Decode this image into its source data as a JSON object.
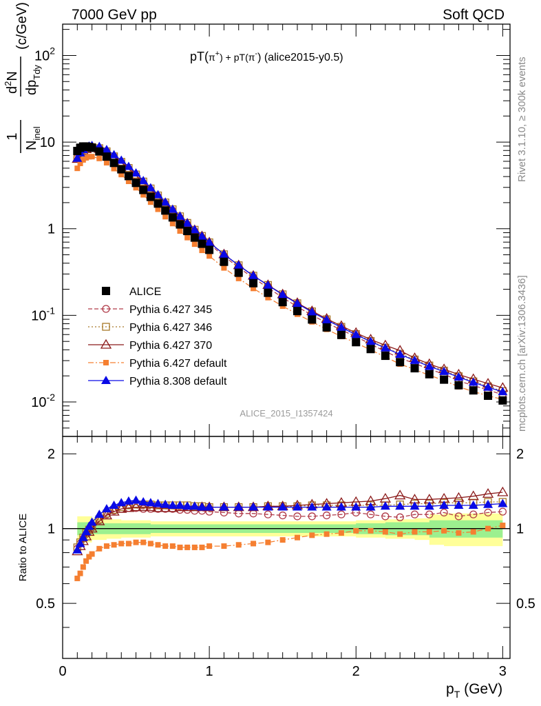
{
  "header": {
    "left": "7000 GeV pp",
    "right": "Soft QCD"
  },
  "chart_data": {
    "type": "scatter",
    "title_parts": {
      "a": "pT(",
      "pip": "π",
      "pip_sup": "+",
      "b": ") + pT(",
      "pim": "π",
      "pim_sup": "-",
      "c": ") (alice2015-y0.5)"
    },
    "ylabel_parts": {
      "one": "1",
      "N": "N",
      "N_sub": "inel",
      "d2N": "d",
      "d2N_sup": "2",
      "d2N_tail": "N",
      "dp": "dp",
      "dp_sub": "Tdy",
      "unit": "(c/GeV)"
    },
    "xlabel_parts": {
      "p": "p",
      "p_sub": "T",
      "unit": " (GeV)"
    },
    "ratio_ylabel": "Ratio to ALICE",
    "analysis_label": "ALICE_2015_I1357424",
    "side_text": {
      "top": "Rivet 3.1.10, ≥ 300k events",
      "bottom": "mcplots.cern.ch [arXiv:1306.3436]"
    },
    "main_yscale": "log",
    "main_ylim": [
      0.004,
      230
    ],
    "main_yticks": [
      {
        "base": "10",
        "exp": "-2"
      },
      {
        "base": "10",
        "exp": "-1"
      },
      {
        "base": "1",
        "exp": ""
      },
      {
        "base": "10",
        "exp": ""
      },
      {
        "base": "10",
        "exp": "2"
      }
    ],
    "ratio_ylim": [
      0.3,
      2.35
    ],
    "ratio_yticks": [
      "0.5",
      "1",
      "2"
    ],
    "xlim": [
      0,
      3.05
    ],
    "xticks": [
      "0",
      "1",
      "2",
      "3"
    ],
    "legend": [
      {
        "name": "ALICE",
        "color": "#000000",
        "marker": "square-filled",
        "line": "none"
      },
      {
        "name": "Pythia 6.427 345",
        "color": "#b03a48",
        "marker": "circle-open",
        "line": "dashed"
      },
      {
        "name": "Pythia 6.427 346",
        "color": "#a87828",
        "marker": "square-open",
        "line": "dotted"
      },
      {
        "name": "Pythia 6.427 370",
        "color": "#8b1a1a",
        "marker": "triangle-open",
        "line": "solid"
      },
      {
        "name": "Pythia 6.427 default",
        "color": "#f57f31",
        "marker": "square-filled-small",
        "line": "dashdot"
      },
      {
        "name": "Pythia 8.308 default",
        "color": "#0a0ae6",
        "marker": "triangle-filled",
        "line": "solid"
      }
    ],
    "x": [
      0.1,
      0.12,
      0.14,
      0.16,
      0.18,
      0.2,
      0.25,
      0.3,
      0.35,
      0.4,
      0.45,
      0.5,
      0.55,
      0.6,
      0.65,
      0.7,
      0.75,
      0.8,
      0.85,
      0.9,
      0.95,
      1.0,
      1.1,
      1.2,
      1.3,
      1.4,
      1.5,
      1.6,
      1.7,
      1.8,
      1.9,
      2.0,
      2.1,
      2.2,
      2.3,
      2.4,
      2.5,
      2.6,
      2.7,
      2.8,
      2.9,
      3.0
    ],
    "data": [
      7.9,
      8.6,
      8.9,
      8.9,
      8.8,
      8.6,
      7.8,
      6.8,
      5.75,
      4.85,
      4.05,
      3.38,
      2.8,
      2.33,
      1.95,
      1.62,
      1.35,
      1.12,
      0.94,
      0.79,
      0.67,
      0.57,
      0.415,
      0.31,
      0.235,
      0.182,
      0.142,
      0.112,
      0.0895,
      0.0725,
      0.0594,
      0.049,
      0.0408,
      0.0341,
      0.0288,
      0.0245,
      0.0209,
      0.0181,
      0.0156,
      0.0136,
      0.0118,
      0.0104
    ],
    "band_x": [
      0.1,
      0.2,
      0.3,
      0.4,
      0.5,
      0.6,
      0.7,
      0.8,
      0.9,
      1.0,
      1.2,
      1.4,
      1.6,
      1.8,
      2.0,
      2.2,
      2.4,
      2.5,
      2.6,
      2.8,
      3.0
    ],
    "band_outer": [
      0.12,
      0.1,
      0.09,
      0.08,
      0.08,
      0.07,
      0.07,
      0.07,
      0.07,
      0.07,
      0.07,
      0.07,
      0.07,
      0.07,
      0.08,
      0.09,
      0.1,
      0.14,
      0.15,
      0.15,
      0.15
    ],
    "band_inner": [
      0.06,
      0.05,
      0.05,
      0.05,
      0.05,
      0.04,
      0.04,
      0.04,
      0.04,
      0.04,
      0.04,
      0.04,
      0.04,
      0.04,
      0.05,
      0.06,
      0.06,
      0.08,
      0.08,
      0.08,
      0.08
    ],
    "ratios": [
      [
        0.83,
        0.87,
        0.91,
        0.95,
        0.98,
        1.01,
        1.08,
        1.14,
        1.18,
        1.2,
        1.21,
        1.21,
        1.2,
        1.2,
        1.2,
        1.2,
        1.2,
        1.19,
        1.19,
        1.18,
        1.18,
        1.17,
        1.16,
        1.15,
        1.15,
        1.14,
        1.13,
        1.12,
        1.12,
        1.13,
        1.14,
        1.16,
        1.14,
        1.12,
        1.11,
        1.14,
        1.14,
        1.16,
        1.12,
        1.14,
        1.16,
        1.17
      ],
      [
        0.84,
        0.88,
        0.92,
        0.96,
        0.99,
        1.02,
        1.09,
        1.15,
        1.19,
        1.22,
        1.24,
        1.25,
        1.25,
        1.25,
        1.24,
        1.24,
        1.24,
        1.24,
        1.24,
        1.23,
        1.23,
        1.22,
        1.22,
        1.22,
        1.22,
        1.23,
        1.23,
        1.23,
        1.24,
        1.24,
        1.24,
        1.24,
        1.24,
        1.24,
        1.25,
        1.26,
        1.26,
        1.27,
        1.27,
        1.27,
        1.28,
        1.28
      ],
      [
        0.81,
        0.85,
        0.89,
        0.93,
        0.97,
        1.0,
        1.07,
        1.13,
        1.17,
        1.2,
        1.21,
        1.22,
        1.22,
        1.22,
        1.21,
        1.21,
        1.21,
        1.22,
        1.22,
        1.22,
        1.22,
        1.22,
        1.22,
        1.22,
        1.22,
        1.23,
        1.23,
        1.24,
        1.25,
        1.26,
        1.27,
        1.28,
        1.29,
        1.32,
        1.36,
        1.31,
        1.31,
        1.32,
        1.33,
        1.35,
        1.38,
        1.4
      ],
      [
        0.63,
        0.66,
        0.7,
        0.74,
        0.77,
        0.79,
        0.83,
        0.85,
        0.86,
        0.87,
        0.87,
        0.88,
        0.88,
        0.87,
        0.86,
        0.85,
        0.85,
        0.84,
        0.84,
        0.84,
        0.84,
        0.85,
        0.85,
        0.86,
        0.87,
        0.88,
        0.9,
        0.92,
        0.94,
        0.95,
        0.96,
        0.98,
        0.98,
        0.97,
        0.95,
        0.97,
        0.97,
        0.98,
        0.96,
        0.97,
        1.0,
        1.03
      ],
      [
        0.82,
        0.87,
        0.92,
        0.97,
        1.02,
        1.06,
        1.14,
        1.2,
        1.24,
        1.27,
        1.29,
        1.3,
        1.28,
        1.27,
        1.26,
        1.25,
        1.24,
        1.24,
        1.23,
        1.23,
        1.22,
        1.22,
        1.22,
        1.22,
        1.22,
        1.22,
        1.22,
        1.22,
        1.22,
        1.22,
        1.22,
        1.22,
        1.22,
        1.23,
        1.23,
        1.23,
        1.23,
        1.24,
        1.24,
        1.24,
        1.25,
        1.26
      ]
    ]
  }
}
